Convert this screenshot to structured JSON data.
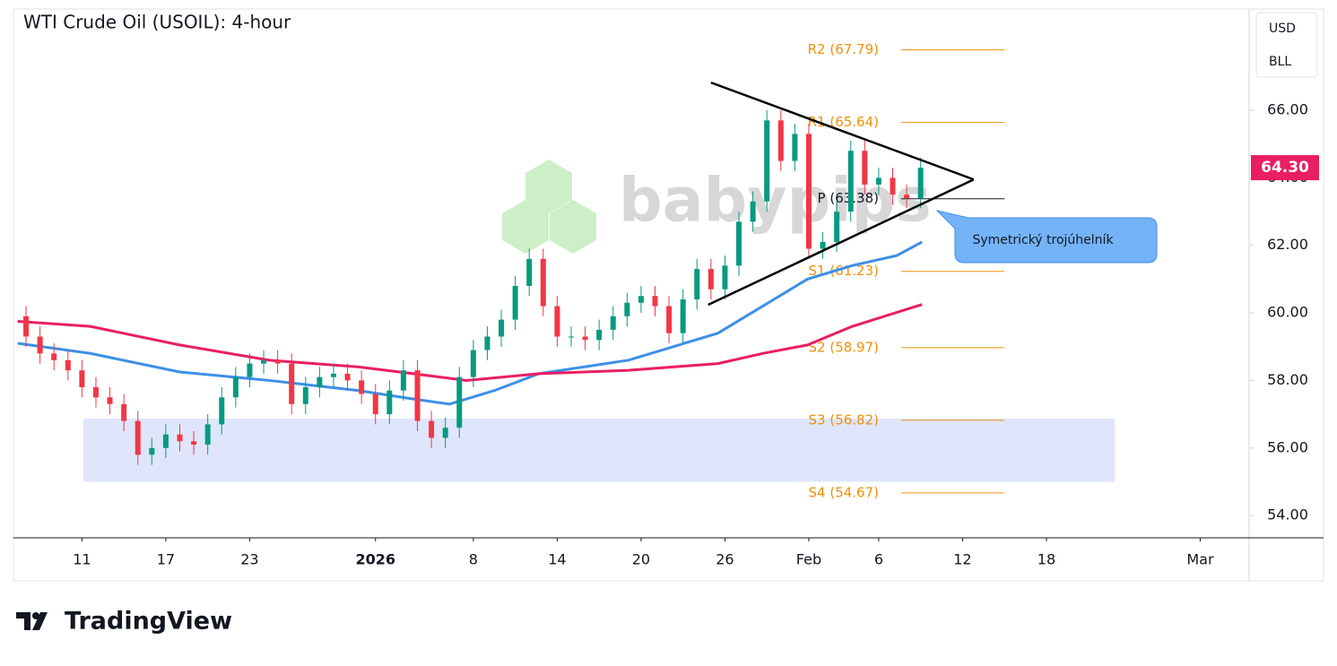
{
  "chart_data": {
    "type": "candlestick",
    "title": "WTI Crude Oil (USOIL): 4-hour",
    "currency_buttons": [
      "USD",
      "BLL"
    ],
    "watermark": "babypips",
    "brand": "TradingView",
    "callout": "Symetrický trojúhelník",
    "xlim": [
      -25.9,
      62.5
    ],
    "ylim": [
      53.34,
      69.0
    ],
    "xticks": [
      {
        "value": -21,
        "label": "11"
      },
      {
        "value": -15,
        "label": "17"
      },
      {
        "value": -9,
        "label": "23"
      },
      {
        "value": 0,
        "label": "2026"
      },
      {
        "value": 7,
        "label": "8"
      },
      {
        "value": 13,
        "label": "14"
      },
      {
        "value": 19,
        "label": "20"
      },
      {
        "value": 25,
        "label": "26"
      },
      {
        "value": 31,
        "label": "Feb"
      },
      {
        "value": 36,
        "label": "6"
      },
      {
        "value": 42,
        "label": "12"
      },
      {
        "value": 48,
        "label": "18"
      },
      {
        "value": 59,
        "label": "Mar"
      }
    ],
    "yticks": [
      {
        "value": 54,
        "label": "54.00"
      },
      {
        "value": 56,
        "label": "56.00"
      },
      {
        "value": 58,
        "label": "58.00"
      },
      {
        "value": 60,
        "label": "60.00"
      },
      {
        "value": 62,
        "label": "62.00"
      },
      {
        "value": 64,
        "label": "64.00"
      },
      {
        "value": 66,
        "label": "66.00"
      }
    ],
    "up_color": "#089981",
    "down_color": "#f23645",
    "x": [
      -25,
      -24,
      -23,
      -22,
      -21,
      -20,
      -19,
      -18,
      -17,
      -16,
      -15,
      -14,
      -13,
      -12,
      -11,
      -10,
      -9,
      -8,
      -7,
      -6,
      -5,
      -4,
      -3,
      -2,
      -1,
      0,
      1,
      2,
      3,
      4,
      5,
      6,
      7,
      8,
      9,
      10,
      11,
      12,
      13,
      14,
      15,
      16,
      17,
      18,
      19,
      20,
      21,
      22,
      23,
      24,
      25,
      26,
      27,
      28,
      29,
      30,
      31,
      32,
      33,
      34,
      35,
      36,
      37,
      38,
      39
    ],
    "open": [
      59.9,
      59.3,
      58.8,
      58.6,
      58.3,
      57.8,
      57.5,
      57.3,
      56.8,
      55.8,
      56.0,
      56.4,
      56.2,
      56.1,
      56.7,
      57.5,
      58.1,
      58.5,
      58.6,
      58.5,
      57.3,
      57.8,
      58.1,
      58.2,
      58.0,
      57.6,
      57.0,
      57.7,
      58.3,
      56.8,
      56.3,
      56.6,
      58.1,
      58.9,
      59.3,
      59.8,
      60.8,
      61.6,
      60.2,
      59.3,
      59.3,
      59.2,
      59.5,
      59.9,
      60.3,
      60.5,
      60.2,
      59.4,
      60.4,
      61.3,
      60.7,
      61.4,
      62.7,
      63.3,
      65.7,
      64.5,
      65.3,
      61.9,
      62.1,
      63.0,
      64.8,
      63.8,
      64.0,
      63.5,
      63.4
    ],
    "high": [
      60.2,
      59.6,
      59.1,
      58.9,
      58.6,
      58.1,
      57.8,
      57.6,
      57.1,
      56.3,
      56.7,
      56.7,
      56.5,
      57.0,
      57.8,
      58.4,
      58.8,
      58.9,
      58.9,
      58.8,
      58.1,
      58.4,
      58.5,
      58.5,
      58.3,
      57.9,
      58.0,
      58.6,
      58.6,
      57.1,
      56.9,
      58.4,
      59.2,
      59.6,
      60.1,
      61.1,
      61.9,
      61.9,
      60.5,
      59.6,
      59.6,
      59.8,
      60.2,
      60.6,
      60.8,
      60.8,
      60.5,
      60.7,
      61.6,
      61.6,
      61.7,
      63.0,
      63.6,
      66.0,
      66.0,
      65.6,
      65.6,
      62.4,
      63.3,
      65.1,
      65.1,
      64.3,
      64.3,
      63.8,
      64.6
    ],
    "low": [
      59.0,
      58.5,
      58.3,
      58.0,
      57.5,
      57.2,
      57.0,
      56.5,
      55.5,
      55.5,
      55.7,
      55.9,
      55.8,
      55.8,
      56.4,
      57.2,
      57.8,
      58.2,
      58.2,
      57.0,
      57.0,
      57.5,
      57.8,
      57.7,
      57.3,
      56.7,
      56.7,
      57.4,
      56.5,
      56.0,
      56.0,
      56.3,
      57.8,
      58.6,
      59.0,
      59.5,
      60.5,
      59.9,
      59.0,
      59.0,
      58.9,
      58.9,
      59.2,
      59.6,
      60.0,
      59.9,
      59.1,
      59.1,
      60.1,
      60.4,
      60.4,
      61.1,
      62.4,
      63.0,
      64.2,
      64.2,
      61.6,
      61.6,
      61.8,
      62.7,
      63.5,
      63.5,
      63.2,
      63.1,
      63.1
    ],
    "close": [
      59.3,
      58.8,
      58.6,
      58.3,
      57.8,
      57.5,
      57.3,
      56.8,
      55.8,
      56.0,
      56.4,
      56.2,
      56.1,
      56.7,
      57.5,
      58.1,
      58.5,
      58.6,
      58.5,
      57.3,
      57.8,
      58.1,
      58.2,
      58.0,
      57.6,
      57.0,
      57.7,
      58.3,
      56.8,
      56.3,
      56.6,
      58.1,
      58.9,
      59.3,
      59.8,
      60.8,
      61.6,
      60.2,
      59.3,
      59.3,
      59.2,
      59.5,
      59.9,
      60.3,
      60.5,
      60.2,
      59.4,
      60.4,
      61.3,
      60.7,
      61.4,
      62.7,
      63.3,
      65.7,
      64.5,
      65.3,
      61.9,
      62.1,
      63.0,
      64.8,
      63.8,
      64.0,
      63.5,
      63.4,
      64.3
    ],
    "ma": [
      {
        "color": "#3d8fe6",
        "x": [
          -25.6,
          -20.4,
          -14.0,
          -7.6,
          -1.2,
          2.7,
          5.3,
          8.5,
          11.7,
          14.9,
          18.1,
          21.3,
          24.5,
          27.7,
          30.9,
          34.1,
          37.3,
          39.1
        ],
        "values": [
          59.1,
          58.8,
          58.25,
          58.0,
          57.7,
          57.45,
          57.3,
          57.7,
          58.2,
          58.4,
          58.6,
          59.0,
          59.4,
          60.2,
          61.0,
          61.4,
          61.7,
          62.1
        ]
      },
      {
        "color": "#e91e63",
        "x": [
          -25.6,
          -20.4,
          -14.0,
          -7.6,
          -1.2,
          2.7,
          6.5,
          11.7,
          18.1,
          24.5,
          27.7,
          30.9,
          34.1,
          39.1
        ],
        "values": [
          59.75,
          59.6,
          59.05,
          58.6,
          58.4,
          58.2,
          58.0,
          58.2,
          58.3,
          58.5,
          58.8,
          59.05,
          59.6,
          60.25
        ]
      }
    ],
    "trendlines": [
      {
        "color": "#000000",
        "x": [
          24.0,
          42.8
        ],
        "values": [
          66.82,
          63.95
        ]
      },
      {
        "color": "#000000",
        "x": [
          23.8,
          42.8
        ],
        "values": [
          60.24,
          63.95
        ]
      }
    ],
    "zone": {
      "color": "#dfe6fb",
      "x": [
        -20.9,
        52.9
      ],
      "values": [
        55.0,
        56.87
      ]
    },
    "pivot_x": [
      37.6,
      45.0
    ],
    "pivots": [
      {
        "label": "R2 (67.79)",
        "value": 67.79,
        "color": "#f0900a"
      },
      {
        "label": "R1 (65.64)",
        "value": 65.64,
        "color": "#f0900a"
      },
      {
        "label": "P (63.38)",
        "value": 63.38,
        "color": "#131722"
      },
      {
        "label": "S1 (61.23)",
        "value": 61.23,
        "color": "#f0900a"
      },
      {
        "label": "S2 (58.97)",
        "value": 58.97,
        "color": "#f0900a"
      },
      {
        "label": "S3 (56.82)",
        "value": 56.82,
        "color": "#f0900a"
      },
      {
        "label": "S4 (54.67)",
        "value": 54.67,
        "color": "#f0900a"
      }
    ],
    "last_price": {
      "value": 64.3,
      "label": "64.30",
      "color": "#e91e63"
    }
  }
}
